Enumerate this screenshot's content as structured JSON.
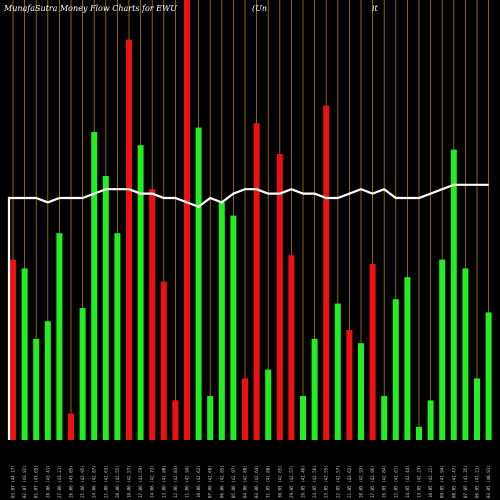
{
  "title_left": "MunafaSutra  Money Flow  Charts for EWU",
  "title_mid": "(Un",
  "title_right": "it",
  "colors": {
    "background": "#000000",
    "grid": "#b07a1a",
    "up": "#22ee22",
    "down": "#ee1111",
    "line": "#ffffff",
    "text": "#ffffff"
  },
  "chart_data": {
    "type": "bar",
    "ylim": [
      0,
      100
    ],
    "grid": true,
    "series": [
      {
        "values": [
          41,
          39,
          23,
          27,
          47,
          6,
          30,
          70,
          60,
          47,
          91,
          67,
          57,
          36,
          9,
          100,
          71,
          10,
          54,
          51,
          14,
          72,
          16,
          65,
          42,
          10,
          23,
          76,
          31,
          25,
          22,
          40,
          10,
          32,
          37,
          3,
          9,
          41,
          66,
          39,
          14,
          29
        ]
      },
      {
        "values": [
          55,
          55,
          55,
          54,
          55,
          55,
          55,
          56,
          57,
          57,
          57,
          56,
          56,
          55,
          55,
          54,
          53,
          55,
          54,
          56,
          57,
          57,
          56,
          56,
          57,
          56,
          56,
          55,
          55,
          56,
          57,
          56,
          57,
          55,
          55,
          55,
          56,
          57,
          58,
          58,
          58,
          58
        ]
      }
    ],
    "bar_colors": [
      "red",
      "green",
      "green",
      "green",
      "green",
      "red",
      "green",
      "green",
      "green",
      "green",
      "red",
      "green",
      "red",
      "red",
      "red",
      "red",
      "green",
      "green",
      "green",
      "green",
      "red",
      "red",
      "green",
      "red",
      "red",
      "green",
      "green",
      "red",
      "green",
      "red",
      "green",
      "red",
      "green",
      "green",
      "green",
      "green",
      "green",
      "green",
      "green",
      "green",
      "green",
      "green"
    ],
    "tick_labels": [
      "03.07 (44.17)",
      "02.07 (43.92)",
      "01.07 (43.65)",
      "28.06 (43.41)",
      "27.06 (43.21)",
      "26.06 (43.05)",
      "25.06 (42.95)",
      "24.06 (42.87)",
      "21.06 (42.63)",
      "20.06 (42.55)",
      "18.06 (42.57)",
      "17.06 (42.59)",
      "14.06 (42.73)",
      "13.06 (42.80)",
      "12.06 (42.83)",
      "11.06 (42.94)",
      "10.06 (42.62)",
      "07.06 (42.60)",
      "06.06 (42.85)",
      "05.06 (42.97)",
      "04.06 (42.80)",
      "03.06 (42.64)",
      "31.05 (42.88)",
      "30.05 (42.65)",
      "29.05 (42.57)",
      "28.05 (42.46)",
      "24.05 (42.56)",
      "23.05 (42.55)",
      "22.05 (42.57)",
      "21.05 (42.62)",
      "20.05 (42.93)",
      "17.05 (42.96)",
      "16.05 (42.84)",
      "15.05 (42.61)",
      "14.05 (42.44)",
      "13.05 (42.23)",
      "10.05 (42.22)",
      "09.05 (41.94)",
      "08.05 (41.47)",
      "07.05 (41.35)",
      "06.05 (41.21)",
      "03.05 (40.91)"
    ]
  }
}
